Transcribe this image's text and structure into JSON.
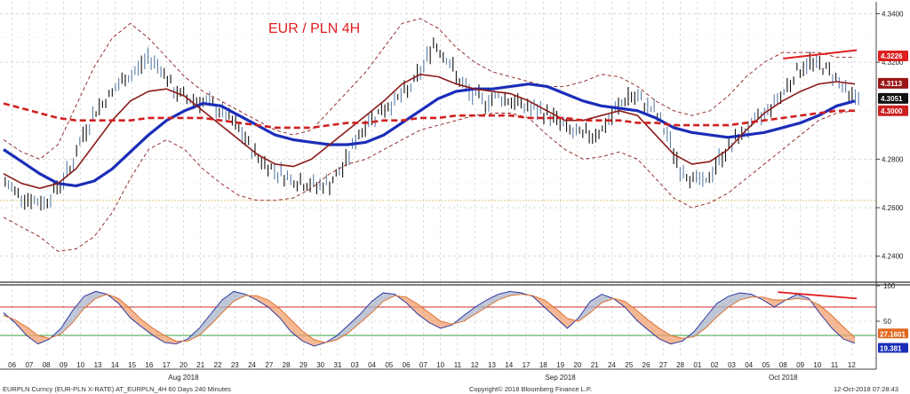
{
  "chart_data": {
    "type": "line",
    "title": "EUR / PLN 4H",
    "xlabel": "",
    "ylabel": "",
    "grid": true,
    "x_day_labels": [
      "06",
      "07",
      "08",
      "09",
      "10",
      "13",
      "14",
      "15",
      "16",
      "17",
      "20",
      "21",
      "22",
      "23",
      "24",
      "27",
      "28",
      "29",
      "30",
      "31",
      "03",
      "04",
      "05",
      "06",
      "07",
      "10",
      "11",
      "12",
      "13",
      "14",
      "17",
      "18",
      "19",
      "20",
      "21",
      "24",
      "25",
      "26",
      "27",
      "28",
      "01",
      "02",
      "03",
      "04",
      "05",
      "08",
      "09",
      "10",
      "11",
      "12"
    ],
    "month_labels": [
      {
        "label": "Aug 2018",
        "day_index": 10
      },
      {
        "label": "Sep 2018",
        "day_index": 32
      },
      {
        "label": "Oct 2018",
        "day_index": 45
      }
    ],
    "price_panel": {
      "ylim": [
        4.23,
        4.342
      ],
      "y_ticks": [
        "4.3400",
        "4.3200",
        "4.2800",
        "4.2600",
        "4.2400"
      ],
      "reference_line": 4.263,
      "last_value_badges": [
        {
          "label": "4.3226",
          "color": "#dd1f1f",
          "value": 4.3226
        },
        {
          "label": "4.3113",
          "color": "#9a1616",
          "value": 4.3113
        },
        {
          "label": "4.3051",
          "color": "#111111",
          "value": 4.3051
        },
        {
          "label": "4.3000",
          "color": "#cc2020",
          "value": 4.3
        }
      ],
      "trendline": {
        "from": {
          "day": 45.5,
          "value": 4.3215
        },
        "to": {
          "day": 49.8,
          "value": 4.325
        },
        "color": "#dd1f1f"
      },
      "price_close_series": [
        4.27,
        4.266,
        4.263,
        4.262,
        4.268,
        4.276,
        4.29,
        4.3,
        4.306,
        4.312,
        4.316,
        4.322,
        4.318,
        4.308,
        4.305,
        4.304,
        4.302,
        4.298,
        4.292,
        4.284,
        4.278,
        4.275,
        4.272,
        4.27,
        4.269,
        4.27,
        4.276,
        4.288,
        4.296,
        4.3,
        4.304,
        4.308,
        4.316,
        4.328,
        4.322,
        4.312,
        4.306,
        4.304,
        4.306,
        4.304,
        4.302,
        4.3,
        4.298,
        4.294,
        4.29,
        4.29,
        4.292,
        4.3,
        4.306,
        4.304,
        4.3,
        4.29,
        4.276,
        4.272,
        4.27,
        4.28,
        4.286,
        4.292,
        4.296,
        4.302,
        4.308,
        4.316,
        4.32,
        4.318,
        4.314,
        4.306
      ],
      "series": [
        {
          "name": "",
          "role": "ma-long",
          "color": "#1a2db8",
          "values": [
            4.284,
            4.279,
            4.274,
            4.27,
            4.269,
            4.271,
            4.276,
            4.283,
            4.29,
            4.296,
            4.3,
            4.303,
            4.302,
            4.298,
            4.294,
            4.29,
            4.288,
            4.287,
            4.286,
            4.286,
            4.287,
            4.29,
            4.295,
            4.3,
            4.305,
            4.308,
            4.309,
            4.309,
            4.31,
            4.311,
            4.31,
            4.307,
            4.304,
            4.302,
            4.301,
            4.3,
            4.297,
            4.293,
            4.291,
            4.29,
            4.289,
            4.29,
            4.291,
            4.293,
            4.295,
            4.298,
            4.302,
            4.304
          ]
        },
        {
          "name": "",
          "role": "ma-mid",
          "color": "#8b1a1a",
          "values": [
            4.274,
            4.27,
            4.268,
            4.27,
            4.276,
            4.286,
            4.296,
            4.304,
            4.308,
            4.309,
            4.306,
            4.3,
            4.294,
            4.288,
            4.282,
            4.278,
            4.277,
            4.28,
            4.286,
            4.292,
            4.298,
            4.304,
            4.311,
            4.315,
            4.314,
            4.311,
            4.309,
            4.308,
            4.307,
            4.304,
            4.3,
            4.296,
            4.296,
            4.298,
            4.3,
            4.298,
            4.29,
            4.282,
            4.278,
            4.279,
            4.284,
            4.292,
            4.299,
            4.304,
            4.308,
            4.311,
            4.312,
            4.311
          ]
        },
        {
          "name": "",
          "role": "ma-flat-dashed",
          "color": "#d02020",
          "dashed": true,
          "values": [
            4.303,
            4.301,
            4.299,
            4.297,
            4.296,
            4.296,
            4.296,
            4.296,
            4.297,
            4.297,
            4.297,
            4.297,
            4.296,
            4.295,
            4.294,
            4.293,
            4.293,
            4.293,
            4.294,
            4.295,
            4.295,
            4.296,
            4.296,
            4.297,
            4.297,
            4.298,
            4.298,
            4.298,
            4.298,
            4.297,
            4.297,
            4.297,
            4.296,
            4.296,
            4.296,
            4.295,
            4.295,
            4.294,
            4.294,
            4.294,
            4.294,
            4.295,
            4.296,
            4.297,
            4.298,
            4.299,
            4.3,
            4.3
          ]
        },
        {
          "name": "",
          "role": "bollinger-upper",
          "color": "#8b1a1a",
          "dashed": true,
          "values": [
            4.288,
            4.283,
            4.28,
            4.286,
            4.302,
            4.318,
            4.33,
            4.336,
            4.33,
            4.322,
            4.314,
            4.308,
            4.304,
            4.3,
            4.296,
            4.292,
            4.29,
            4.292,
            4.3,
            4.308,
            4.316,
            4.326,
            4.336,
            4.338,
            4.334,
            4.326,
            4.32,
            4.316,
            4.314,
            4.312,
            4.31,
            4.31,
            4.312,
            4.315,
            4.314,
            4.31,
            4.304,
            4.3,
            4.298,
            4.3,
            4.306,
            4.314,
            4.32,
            4.324,
            4.324,
            4.324,
            4.322,
            4.322
          ]
        },
        {
          "name": "",
          "role": "bollinger-lower",
          "color": "#8b1a1a",
          "dashed": true,
          "values": [
            4.256,
            4.252,
            4.248,
            4.242,
            4.243,
            4.248,
            4.258,
            4.272,
            4.284,
            4.288,
            4.284,
            4.276,
            4.27,
            4.265,
            4.263,
            4.263,
            4.264,
            4.268,
            4.274,
            4.278,
            4.28,
            4.284,
            4.288,
            4.292,
            4.294,
            4.296,
            4.298,
            4.299,
            4.299,
            4.297,
            4.29,
            4.284,
            4.28,
            4.281,
            4.283,
            4.28,
            4.272,
            4.264,
            4.26,
            4.262,
            4.266,
            4.272,
            4.278,
            4.284,
            4.29,
            4.296,
            4.299,
            4.3
          ]
        }
      ]
    },
    "oscillator_panel": {
      "ylim": [
        0,
        100
      ],
      "y_ticks": [
        "100",
        "50"
      ],
      "upper_level": 70,
      "lower_level": 30,
      "last_value_badges": [
        {
          "label": "27.1601",
          "color": "#e06820",
          "value": 27.16
        },
        {
          "label": "19.381",
          "color": "#1a2db8",
          "value": 19.38
        }
      ],
      "trendline": {
        "from": {
          "day": 45.2,
          "value": 91
        },
        "to": {
          "day": 49.8,
          "value": 82
        },
        "color": "#dd1f1f"
      },
      "series": [
        {
          "name": "",
          "role": "fast",
          "color": "#1f2aa0",
          "values": [
            62,
            48,
            30,
            18,
            25,
            40,
            65,
            85,
            92,
            88,
            75,
            55,
            42,
            30,
            20,
            18,
            25,
            40,
            60,
            80,
            92,
            88,
            80,
            70,
            55,
            35,
            22,
            15,
            20,
            30,
            45,
            60,
            78,
            90,
            88,
            76,
            60,
            48,
            40,
            45,
            58,
            70,
            80,
            88,
            92,
            90,
            85,
            70,
            55,
            40,
            55,
            78,
            88,
            82,
            70,
            52,
            38,
            25,
            18,
            22,
            35,
            55,
            75,
            85,
            90,
            88,
            80,
            70,
            80,
            88,
            82,
            60,
            40,
            25,
            19
          ]
        },
        {
          "name": "",
          "role": "slow",
          "color": "#e06820",
          "values": [
            58,
            52,
            42,
            30,
            26,
            32,
            48,
            68,
            82,
            88,
            82,
            68,
            52,
            40,
            30,
            22,
            22,
            30,
            45,
            62,
            78,
            86,
            86,
            80,
            68,
            52,
            36,
            24,
            20,
            24,
            34,
            48,
            62,
            78,
            86,
            84,
            74,
            62,
            50,
            46,
            50,
            60,
            70,
            80,
            86,
            88,
            86,
            80,
            68,
            54,
            50,
            62,
            76,
            82,
            78,
            66,
            52,
            40,
            30,
            26,
            28,
            40,
            56,
            70,
            80,
            84,
            84,
            80,
            80,
            82,
            80,
            72,
            58,
            42,
            27
          ]
        }
      ]
    },
    "footer": {
      "left": "EURPLN Curncy (EUR-PLN X-RATE) AT_EURPLN_4H 60 Days 240 Minutes",
      "center": "Copyright© 2018 Bloomberg Finance L.P.",
      "right": "12-Oct-2018 07:28:43"
    }
  }
}
